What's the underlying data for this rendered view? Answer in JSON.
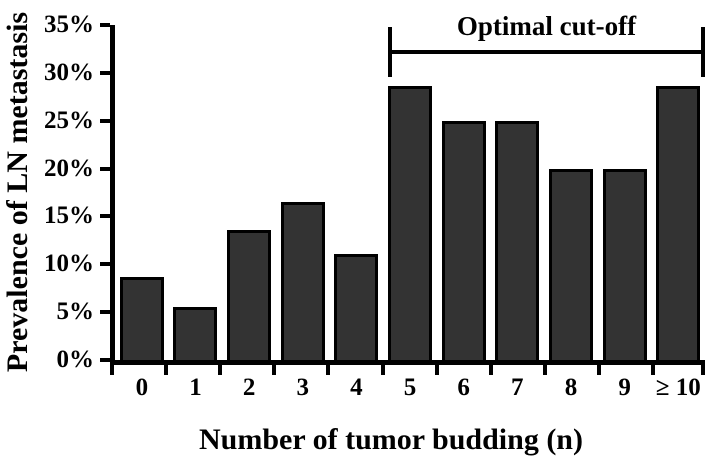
{
  "chart_data": {
    "type": "bar",
    "categories": [
      "0",
      "1",
      "2",
      "3",
      "4",
      "5",
      "6",
      "7",
      "8",
      "9",
      "≥ 10"
    ],
    "values": [
      8.7,
      5.5,
      13.6,
      16.5,
      11.1,
      28.6,
      25.0,
      25.0,
      20.0,
      20.0,
      28.6
    ],
    "title": "",
    "xlabel": "Number of tumor budding (n)",
    "ylabel": "Prevalence of LN metastasis",
    "ylim": [
      0,
      35
    ],
    "ytick_step": 5,
    "ytick_labels": [
      "0%",
      "5%",
      "10%",
      "15%",
      "20%",
      "25%",
      "30%",
      "35%"
    ],
    "grid": false,
    "legend_position": "none",
    "annotation": {
      "label": "Optimal cut-off",
      "span_start_category": "5",
      "span_end_category": "≥ 10",
      "span_start_index": 5,
      "span_end_index": 10
    },
    "colors": {
      "bar_fill": "#333333",
      "bar_border": "#000000",
      "axis": "#000000",
      "text": "#000000",
      "background": "#ffffff"
    }
  }
}
